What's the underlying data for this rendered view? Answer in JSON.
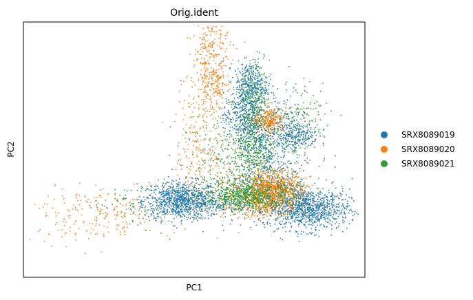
{
  "chart_data": {
    "type": "scatter",
    "title": "Orig.ident",
    "xlabel": "PC1",
    "ylabel": "PC2",
    "xlim": [
      -10,
      10
    ],
    "ylim": [
      -10,
      10
    ],
    "grid": false,
    "ticks": false,
    "legend_position": "right",
    "series": [
      {
        "name": "SRX8089019",
        "color": "#1f77b4",
        "clusters": [
          {
            "cx": -0.8,
            "cy": -4.0,
            "sx": 1.1,
            "sy": 0.75,
            "n": 900
          },
          {
            "cx": 6.7,
            "cy": -4.7,
            "sx": 1.2,
            "sy": 0.8,
            "n": 900
          },
          {
            "cx": 3.3,
            "cy": 5.0,
            "sx": 0.5,
            "sy": 0.9,
            "n": 320
          },
          {
            "cx": 2.9,
            "cy": 2.6,
            "sx": 0.6,
            "sy": 1.0,
            "n": 300
          },
          {
            "cx": 6.1,
            "cy": 1.1,
            "sx": 0.6,
            "sy": 0.5,
            "n": 180
          },
          {
            "cx": 4.0,
            "cy": 0.2,
            "sx": 0.8,
            "sy": 1.4,
            "n": 300
          },
          {
            "cx": 4.5,
            "cy": -3.0,
            "sx": 1.6,
            "sy": 1.2,
            "n": 300
          },
          {
            "cx": 1.5,
            "cy": -4.2,
            "sx": 1.0,
            "sy": 0.5,
            "n": 120
          },
          {
            "cx": 5.3,
            "cy": 2.0,
            "sx": 0.6,
            "sy": 1.2,
            "n": 120
          }
        ]
      },
      {
        "name": "SRX8089020",
        "color": "#ff7f0e",
        "clusters": [
          {
            "cx": 4.6,
            "cy": -3.2,
            "sx": 0.9,
            "sy": 0.8,
            "n": 900
          },
          {
            "cx": 4.4,
            "cy": 2.3,
            "sx": 0.45,
            "sy": 0.5,
            "n": 260
          },
          {
            "cx": 1.0,
            "cy": 8.0,
            "sx": 0.55,
            "sy": 1.2,
            "n": 180
          },
          {
            "cx": 1.1,
            "cy": 5.0,
            "sx": 0.5,
            "sy": 1.0,
            "n": 200
          },
          {
            "cx": 0.3,
            "cy": 1.5,
            "sx": 0.7,
            "sy": 2.5,
            "n": 160
          },
          {
            "cx": -5.6,
            "cy": -5.2,
            "sx": 2.3,
            "sy": 1.0,
            "n": 220
          },
          {
            "cx": 3.3,
            "cy": -4.3,
            "sx": 1.2,
            "sy": 0.6,
            "n": 180
          },
          {
            "cx": 1.8,
            "cy": -2.0,
            "sx": 1.3,
            "sy": 1.8,
            "n": 120
          }
        ]
      },
      {
        "name": "SRX8089021",
        "color": "#2ca02c",
        "clusters": [
          {
            "cx": 3.4,
            "cy": -3.6,
            "sx": 1.4,
            "sy": 0.6,
            "n": 900
          },
          {
            "cx": 3.4,
            "cy": 3.8,
            "sx": 0.5,
            "sy": 1.6,
            "n": 300
          },
          {
            "cx": 3.5,
            "cy": 0.0,
            "sx": 0.6,
            "sy": 1.5,
            "n": 300
          },
          {
            "cx": 2.0,
            "cy": -1.0,
            "sx": 1.4,
            "sy": 1.8,
            "n": 300
          },
          {
            "cx": 5.2,
            "cy": 1.5,
            "sx": 1.0,
            "sy": 1.4,
            "n": 140
          },
          {
            "cx": -3.0,
            "cy": -4.2,
            "sx": 1.8,
            "sy": 0.7,
            "n": 90
          },
          {
            "cx": 6.8,
            "cy": 3.0,
            "sx": 0.7,
            "sy": 1.2,
            "n": 70
          }
        ]
      }
    ]
  }
}
